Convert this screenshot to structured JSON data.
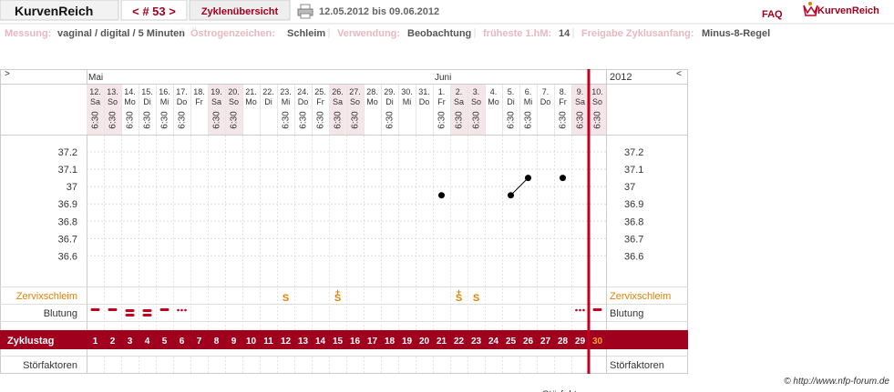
{
  "header": {
    "brand": "KurvenReich",
    "cycle_nav": "< # 53 >",
    "overview": "Zyklenübersicht",
    "period": "12.05.2012 bis 09.06.2012",
    "faq": "FAQ",
    "logo": "KurvenReich"
  },
  "settings": [
    {
      "label": "Messung:",
      "value": "vaginal / digital / 5 Minuten"
    },
    {
      "label": "Östrogenzeichen:",
      "value": "Schleim"
    },
    {
      "label": "Verwendung:",
      "value": "Beobachtung"
    },
    {
      "label": "früheste 1.hM:",
      "value": "14"
    },
    {
      "label": "Freigabe Zyklusanfang:",
      "value": "Minus-8-Regel"
    }
  ],
  "chart": {
    "prev": ">",
    "next": "<",
    "year": "2012",
    "ylim": [
      36.45,
      37.3
    ],
    "yticks": [
      36.6,
      36.7,
      36.8,
      36.9,
      37,
      37.1,
      37.2
    ],
    "rows": {
      "mucus": "Zervixschleim",
      "bleeding": "Blutung",
      "cycle_day": "Zyklustag",
      "disturbances": "Störfaktoren"
    },
    "columns": [
      {
        "day": "12.",
        "weekday": "Sa",
        "time": "6:30",
        "temp": null,
        "cycle_day": 1,
        "weekend": true,
        "bleeding": "normal",
        "month": "Mai"
      },
      {
        "day": "13.",
        "weekday": "So",
        "time": "6:30",
        "temp": null,
        "cycle_day": 2,
        "weekend": true,
        "bleeding": "normal"
      },
      {
        "day": "14.",
        "weekday": "Mo",
        "time": "6:30",
        "temp": null,
        "cycle_day": 3,
        "bleeding": "strong"
      },
      {
        "day": "15.",
        "weekday": "Di",
        "time": "6:30",
        "temp": null,
        "cycle_day": 4,
        "bleeding": "strong"
      },
      {
        "day": "16.",
        "weekday": "Mi",
        "time": "6:30",
        "temp": null,
        "cycle_day": 5,
        "bleeding": "normal"
      },
      {
        "day": "17.",
        "weekday": "Do",
        "time": "6:30",
        "temp": null,
        "cycle_day": 6,
        "bleeding": "spotting"
      },
      {
        "day": "18.",
        "weekday": "Fr",
        "time": null,
        "temp": null,
        "cycle_day": 7
      },
      {
        "day": "19.",
        "weekday": "Sa",
        "time": "6:30",
        "temp": null,
        "cycle_day": 8,
        "weekend": true
      },
      {
        "day": "20.",
        "weekday": "So",
        "time": "6:30",
        "temp": null,
        "cycle_day": 9,
        "weekend": true
      },
      {
        "day": "21.",
        "weekday": "Mo",
        "time": null,
        "temp": null,
        "cycle_day": 10
      },
      {
        "day": "22.",
        "weekday": "Di",
        "time": null,
        "temp": null,
        "cycle_day": 11
      },
      {
        "day": "23.",
        "weekday": "Mi",
        "time": "6:30",
        "temp": null,
        "cycle_day": 12,
        "mucus": "S"
      },
      {
        "day": "24.",
        "weekday": "Do",
        "time": "6:30",
        "temp": null,
        "cycle_day": 13
      },
      {
        "day": "25.",
        "weekday": "Fr",
        "time": "6:30",
        "temp": null,
        "cycle_day": 14
      },
      {
        "day": "26.",
        "weekday": "Sa",
        "time": "6:30",
        "temp": null,
        "cycle_day": 15,
        "weekend": true,
        "mucus": "S",
        "peak": "+"
      },
      {
        "day": "27.",
        "weekday": "So",
        "time": "6:30",
        "temp": null,
        "cycle_day": 16,
        "weekend": true
      },
      {
        "day": "28.",
        "weekday": "Mo",
        "time": null,
        "temp": null,
        "cycle_day": 17
      },
      {
        "day": "29.",
        "weekday": "Di",
        "time": "6:30",
        "temp": null,
        "cycle_day": 18
      },
      {
        "day": "30.",
        "weekday": "Mi",
        "time": null,
        "temp": null,
        "cycle_day": 19
      },
      {
        "day": "31.",
        "weekday": "Do",
        "time": null,
        "temp": null,
        "cycle_day": 20
      },
      {
        "day": "1.",
        "weekday": "Fr",
        "time": "6:30",
        "temp": 36.95,
        "cycle_day": 21,
        "month": "Juni"
      },
      {
        "day": "2.",
        "weekday": "Sa",
        "time": "6:30",
        "temp": null,
        "cycle_day": 22,
        "weekend": true,
        "mucus": "S",
        "peak": "+"
      },
      {
        "day": "3.",
        "weekday": "So",
        "time": "6:30",
        "temp": null,
        "cycle_day": 23,
        "weekend": true,
        "mucus": "S"
      },
      {
        "day": "4.",
        "weekday": "Mo",
        "time": null,
        "temp": null,
        "cycle_day": 24
      },
      {
        "day": "5.",
        "weekday": "Di",
        "time": "6:30",
        "temp": 36.95,
        "cycle_day": 25
      },
      {
        "day": "6.",
        "weekday": "Mi",
        "time": "6:30",
        "temp": 37.05,
        "cycle_day": 26
      },
      {
        "day": "7.",
        "weekday": "Do",
        "time": null,
        "temp": null,
        "cycle_day": 27
      },
      {
        "day": "8.",
        "weekday": "Fr",
        "time": "6:30",
        "temp": 37.05,
        "cycle_day": 28
      },
      {
        "day": "9.",
        "weekday": "Sa",
        "time": "6:30",
        "temp": null,
        "cycle_day": 29,
        "weekend": true,
        "bleeding": "spotting"
      },
      {
        "day": "10.",
        "weekday": "So",
        "time": "6:30",
        "temp": null,
        "cycle_day": 30,
        "weekend": true,
        "bleeding": "normal",
        "current": true
      }
    ]
  },
  "footer": {
    "copyright": "© http://www.nfp-forum.de"
  }
}
